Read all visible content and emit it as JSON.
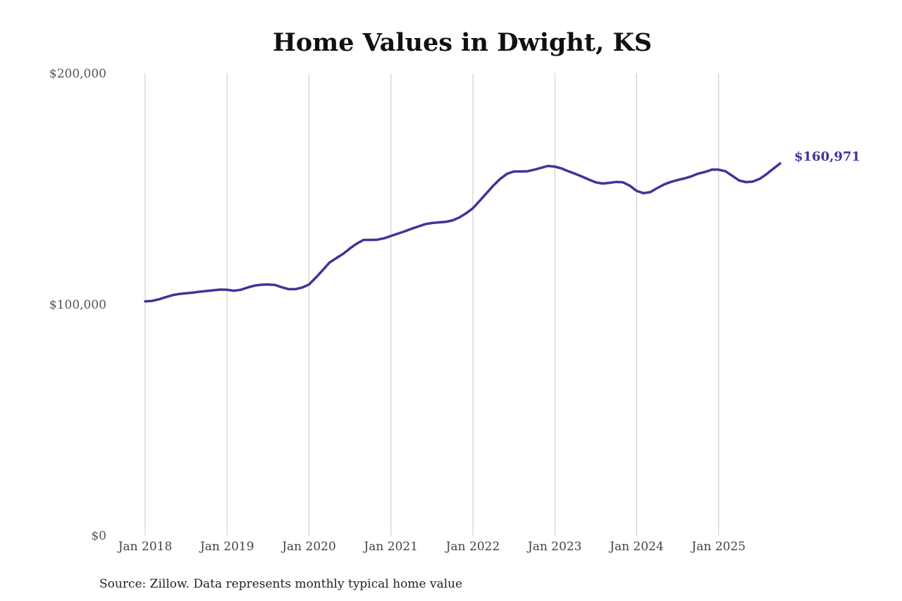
{
  "chart_data": {
    "type": "line",
    "title": "Home Values in Dwight, KS",
    "source": "Source: Zillow. Data represents monthly typical home value",
    "ylim": [
      0,
      200000
    ],
    "y_ticks": [
      0,
      100000,
      200000
    ],
    "y_tick_labels": [
      "$0",
      "$100,000",
      "$200,000"
    ],
    "x_ticks": [
      "2018-01",
      "2019-01",
      "2020-01",
      "2021-01",
      "2022-01",
      "2023-01",
      "2024-01",
      "2025-01"
    ],
    "x_tick_labels": [
      "Jan 2018",
      "Jan 2019",
      "Jan 2020",
      "Jan 2021",
      "Jan 2022",
      "Jan 2023",
      "Jan 2024",
      "Jan 2025"
    ],
    "grid": "vertical",
    "line_color": "#3d3597",
    "last_value_label": "$160,971",
    "series": [
      {
        "x": [
          "2018-01",
          "2018-02",
          "2018-03",
          "2018-04",
          "2018-05",
          "2018-06",
          "2018-07",
          "2018-08",
          "2018-09",
          "2018-10",
          "2018-11",
          "2018-12",
          "2019-01",
          "2019-02",
          "2019-03",
          "2019-04",
          "2019-05",
          "2019-06",
          "2019-07",
          "2019-08",
          "2019-09",
          "2019-10",
          "2019-11",
          "2019-12",
          "2020-01",
          "2020-02",
          "2020-03",
          "2020-04",
          "2020-05",
          "2020-06",
          "2020-07",
          "2020-08",
          "2020-09",
          "2020-10",
          "2020-11",
          "2020-12",
          "2021-01",
          "2021-02",
          "2021-03",
          "2021-04",
          "2021-05",
          "2021-06",
          "2021-07",
          "2021-08",
          "2021-09",
          "2021-10",
          "2021-11",
          "2021-12",
          "2022-01",
          "2022-02",
          "2022-03",
          "2022-04",
          "2022-05",
          "2022-06",
          "2022-07",
          "2022-08",
          "2022-09",
          "2022-10",
          "2022-11",
          "2022-12",
          "2023-01",
          "2023-02",
          "2023-03",
          "2023-04",
          "2023-05",
          "2023-06",
          "2023-07",
          "2023-08",
          "2023-09",
          "2023-10",
          "2023-11",
          "2023-12",
          "2024-01",
          "2024-02",
          "2024-03",
          "2024-04",
          "2024-05",
          "2024-06",
          "2024-07",
          "2024-08",
          "2024-09",
          "2024-10",
          "2024-11",
          "2024-12",
          "2025-01",
          "2025-02",
          "2025-03",
          "2025-04",
          "2025-05",
          "2025-06",
          "2025-07",
          "2025-08",
          "2025-09",
          "2025-10"
        ],
        "values": [
          101300,
          101500,
          102200,
          103100,
          104000,
          104500,
          104800,
          105100,
          105500,
          105800,
          106100,
          106400,
          106300,
          105900,
          106300,
          107300,
          108100,
          108500,
          108600,
          108400,
          107400,
          106600,
          106600,
          107300,
          108600,
          111600,
          114800,
          118100,
          120000,
          121900,
          124200,
          126300,
          127900,
          127900,
          128000,
          128600,
          129600,
          130600,
          131600,
          132700,
          133700,
          134700,
          135200,
          135500,
          135700,
          136300,
          137600,
          139400,
          141600,
          144800,
          148100,
          151400,
          154300,
          156500,
          157500,
          157500,
          157600,
          158300,
          159100,
          159900,
          159600,
          158800,
          157600,
          156500,
          155300,
          154000,
          152800,
          152300,
          152600,
          153000,
          152800,
          151300,
          149100,
          148100,
          148600,
          150300,
          151900,
          153000,
          153800,
          154500,
          155400,
          156600,
          157300,
          158300,
          158300,
          157600,
          155600,
          153600,
          152900,
          153100,
          154300,
          156300,
          158700,
          160971
        ]
      }
    ]
  }
}
